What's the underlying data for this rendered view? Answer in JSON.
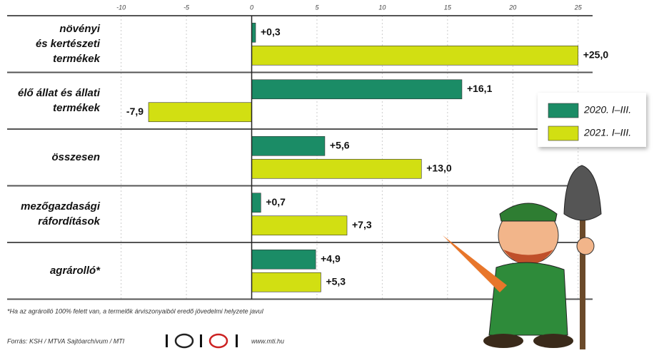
{
  "chart_data": {
    "type": "bar",
    "orientation": "horizontal",
    "categories": [
      "növényi\nés kertészeti\ntermékek",
      "élő állat és állati\ntermékek",
      "összesen",
      "mezőgazdasági\nráfordítások",
      "agrárolló*"
    ],
    "series": [
      {
        "name": "2020. I–III.",
        "color": "#1b8c66",
        "values": [
          0.3,
          16.1,
          5.6,
          0.7,
          4.9
        ],
        "value_labels": [
          "+0,3",
          "+16,1",
          "+5,6",
          "+0,7",
          "+4,9"
        ]
      },
      {
        "name": "2021. I–III.",
        "color": "#d2df12",
        "values": [
          25.0,
          -7.9,
          13.0,
          7.3,
          5.3
        ],
        "value_labels": [
          "+25,0",
          "-7,9",
          "+13,0",
          "+7,3",
          "+5,3"
        ]
      }
    ],
    "xlim": [
      -10.8,
      26
    ],
    "xticks": [
      -10,
      -5,
      0,
      5,
      10,
      15,
      20,
      25
    ],
    "grid": true,
    "legend": "right",
    "footnote": "*Ha az agrárolló 100% felett van, a termelők árviszonyaiból eredő jövedelmi helyzete javul",
    "source": "Forrás: KSH / MTVA Sajtóarchívum / MTI",
    "website": "www.mti.hu"
  }
}
